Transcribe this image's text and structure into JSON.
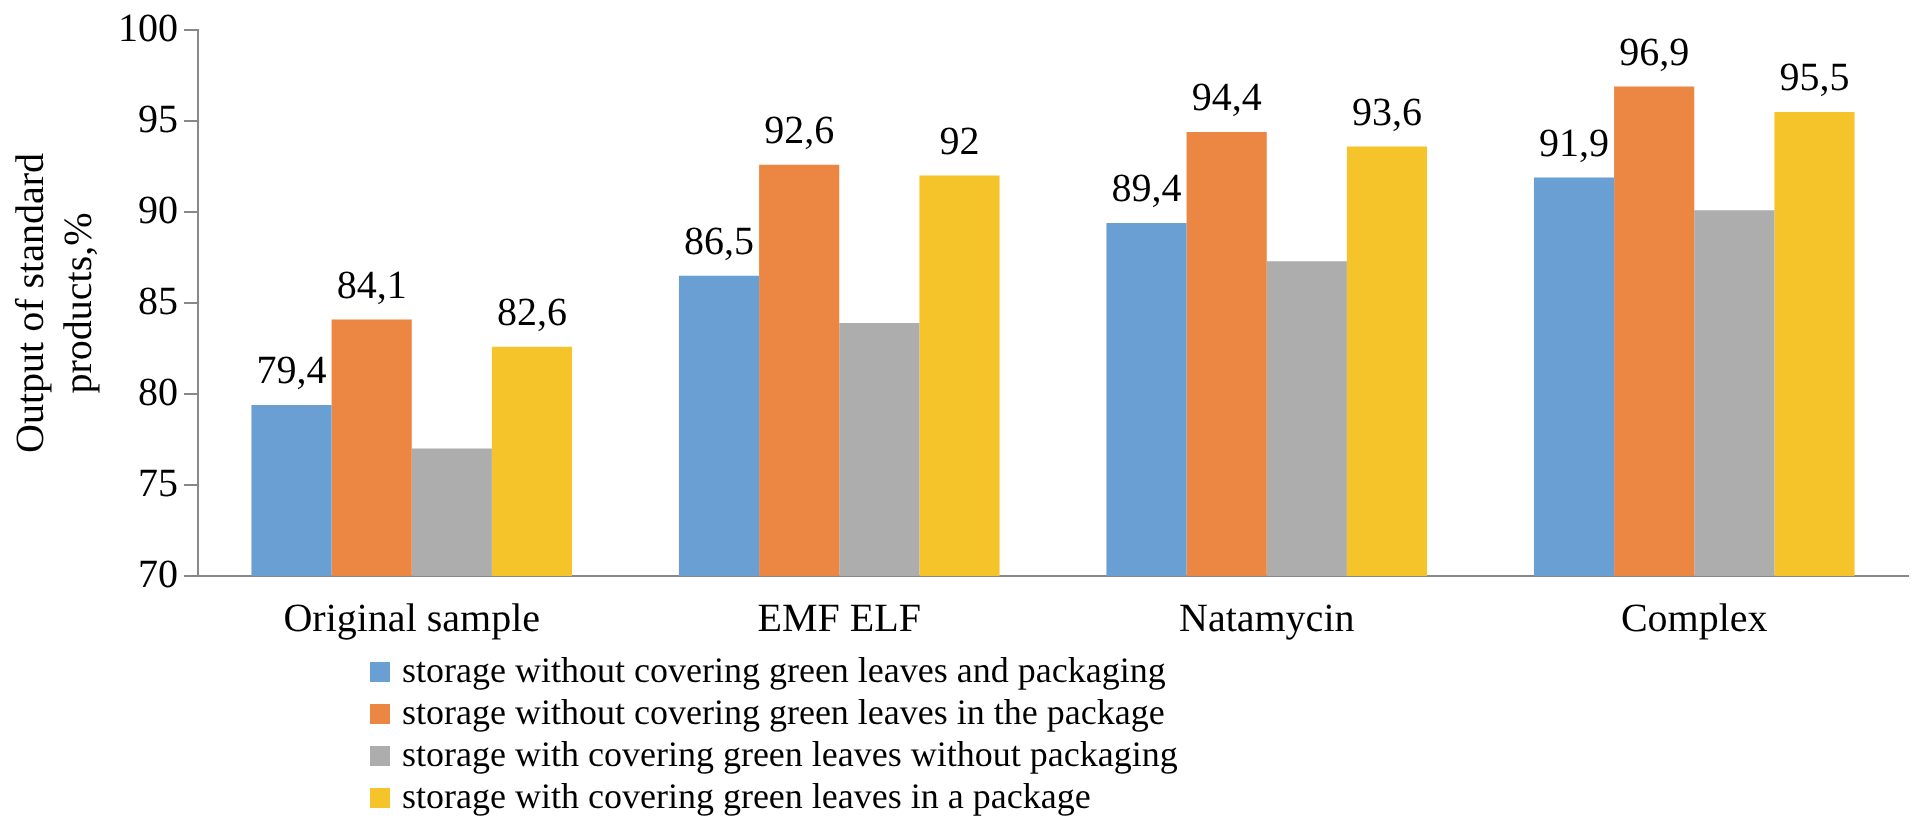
{
  "chart_data": {
    "type": "bar",
    "ylabel": "Output of standard products,%",
    "categories": [
      "Original sample",
      "EMF ELF",
      "Natamycin",
      "Complex"
    ],
    "series": [
      {
        "name": "storage without covering green leaves and packaging",
        "color": "#699fd3",
        "values": [
          79.4,
          86.5,
          89.4,
          91.9
        ],
        "value_labels": [
          "79,4",
          "86,5",
          "89,4",
          "91,9"
        ]
      },
      {
        "name": "storage without covering green leaves in the package",
        "color": "#ec8643",
        "values": [
          84.1,
          92.6,
          94.4,
          96.9
        ],
        "value_labels": [
          "84,1",
          "92,6",
          "94,4",
          "96,9"
        ]
      },
      {
        "name": "storage with covering green leaves without packaging",
        "color": "#adadad",
        "values": [
          77,
          83.9,
          87.3,
          90.1
        ]
      },
      {
        "name": "storage with covering green leaves in a package",
        "color": "#f5c42a",
        "values": [
          82.6,
          92,
          93.6,
          95.5
        ],
        "value_labels": [
          "82,6",
          "92",
          "93,6",
          "95,5"
        ]
      }
    ],
    "ylim": [
      70,
      100
    ],
    "yticks": [
      70,
      75,
      80,
      85,
      90,
      95,
      100
    ],
    "grid": false,
    "legend": "bottom"
  }
}
